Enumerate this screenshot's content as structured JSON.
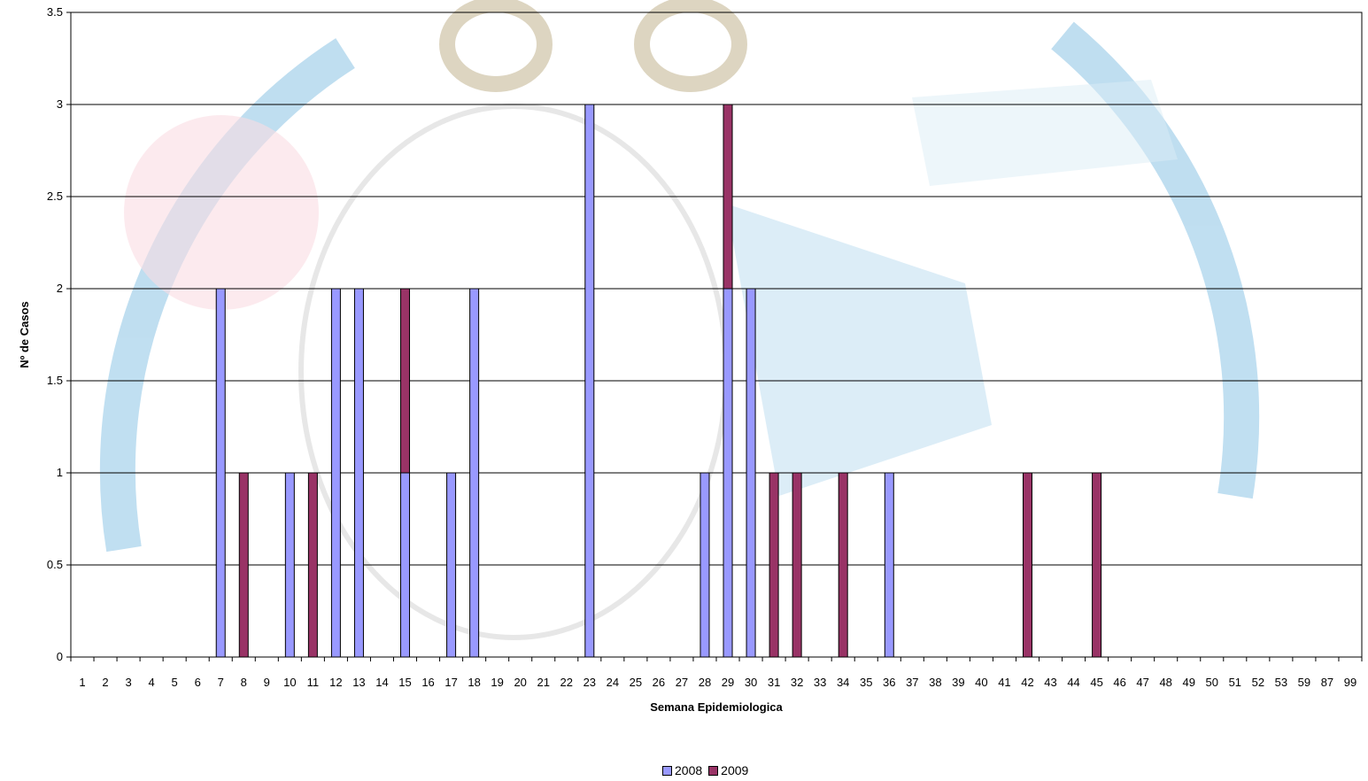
{
  "chart_data": {
    "type": "bar",
    "stacked": true,
    "title": "",
    "xlabel": "Semana Epidemiologica",
    "ylabel": "Nº de Casos",
    "ylim": [
      0,
      3.5
    ],
    "yticks": [
      "0",
      "0.5",
      "1",
      "1.5",
      "2",
      "2.5",
      "3",
      "3.5"
    ],
    "grid": true,
    "legend_position": "bottom",
    "categories": [
      "1",
      "2",
      "3",
      "4",
      "5",
      "6",
      "7",
      "8",
      "9",
      "10",
      "11",
      "12",
      "13",
      "14",
      "15",
      "16",
      "17",
      "18",
      "19",
      "20",
      "21",
      "22",
      "23",
      "24",
      "25",
      "26",
      "27",
      "28",
      "29",
      "30",
      "31",
      "32",
      "33",
      "34",
      "35",
      "36",
      "37",
      "38",
      "39",
      "40",
      "41",
      "42",
      "43",
      "44",
      "45",
      "46",
      "47",
      "48",
      "49",
      "50",
      "51",
      "52",
      "53",
      "59",
      "87",
      "99"
    ],
    "series": [
      {
        "name": "2008",
        "color": "#9999ff",
        "values": [
          0,
          0,
          0,
          0,
          0,
          0,
          2,
          0,
          0,
          1,
          0,
          2,
          2,
          0,
          1,
          0,
          1,
          2,
          0,
          0,
          0,
          0,
          3,
          0,
          0,
          0,
          0,
          1,
          2,
          2,
          0,
          0,
          0,
          0,
          0,
          1,
          0,
          0,
          0,
          0,
          0,
          0,
          0,
          0,
          0,
          0,
          0,
          0,
          0,
          0,
          0,
          0,
          0,
          0,
          0,
          0
        ]
      },
      {
        "name": "2009",
        "color": "#993366",
        "values": [
          0,
          0,
          0,
          0,
          0,
          0,
          0,
          1,
          0,
          0,
          1,
          0,
          0,
          0,
          1,
          0,
          0,
          0,
          0,
          0,
          0,
          0,
          0,
          0,
          0,
          0,
          0,
          0,
          1,
          0,
          1,
          1,
          0,
          1,
          0,
          0,
          0,
          0,
          0,
          0,
          0,
          1,
          0,
          0,
          1,
          0,
          0,
          0,
          0,
          0,
          0,
          0,
          0,
          0,
          0,
          0
        ]
      }
    ]
  }
}
